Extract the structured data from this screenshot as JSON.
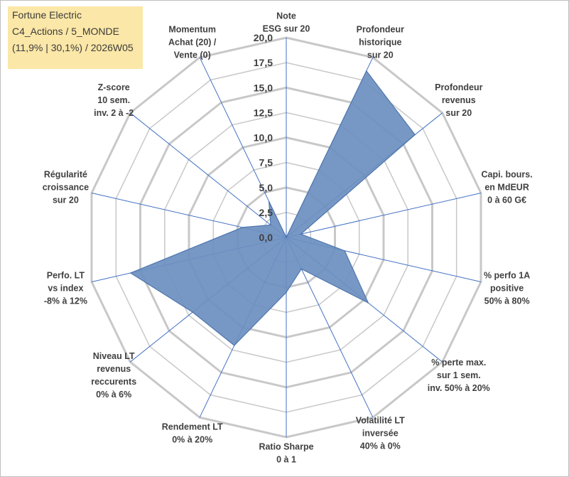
{
  "info_box": {
    "line1": "Fortune Electric",
    "line2": "C4_Actions / 5_MONDE",
    "line3": "(11,9% | 30,1%) / 2026W05"
  },
  "chart_data": {
    "type": "radar",
    "title": "",
    "rmin": 0,
    "rmax": 20,
    "tick_labels": [
      "0,0",
      "2,5",
      "5,0",
      "7,5",
      "10,0",
      "12,5",
      "15,0",
      "17,5",
      "20,0"
    ],
    "grid": true,
    "colors": {
      "fill": "#6b8fc0",
      "stroke": "#4f76ad",
      "grid": "#c8c8c8",
      "axis": "#4472c4"
    },
    "axes": [
      [
        "Note",
        "ESG sur 20"
      ],
      [
        "Profondeur",
        "historique",
        "sur 20"
      ],
      [
        "Profondeur",
        "revenus",
        "sur 20"
      ],
      [
        "Capi. bours.",
        "en MdEUR",
        "0 à 60 G€"
      ],
      [
        "% perfo 1A",
        "positive",
        "50% à 80%"
      ],
      [
        "% perte max.",
        "sur 1 sem.",
        "inv. 50% à 20%"
      ],
      [
        "Volatilité LT",
        "inversée",
        "40% à 0%"
      ],
      [
        "Ratio Sharpe",
        "0 à 1"
      ],
      [
        "Rendement LT",
        "0% à 20%"
      ],
      [
        "Niveau LT",
        "revenus",
        "reccurents",
        "0% à 6%"
      ],
      [
        "Perfo. LT",
        "vs index",
        "-8% à 12%"
      ],
      [
        "Régularité",
        "croissance",
        "sur 20"
      ],
      [
        "Z-score",
        "10 sem.",
        "inv. 2 à -2"
      ],
      [
        "Momentum",
        "Achat (20) /",
        "Vente (0)"
      ]
    ],
    "series": [
      {
        "values": [
          0,
          18.5,
          16.5,
          1.5,
          6.0,
          10.5,
          3.5,
          5.5,
          12.0,
          12.0,
          16.0,
          4.5,
          2.0,
          4.0
        ]
      }
    ]
  }
}
